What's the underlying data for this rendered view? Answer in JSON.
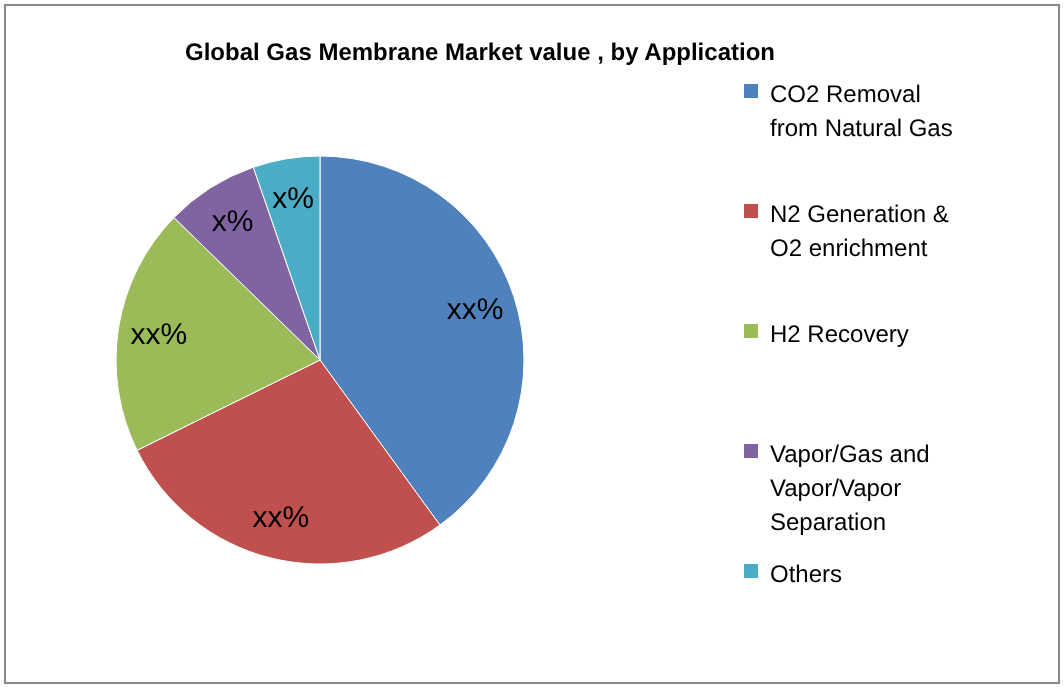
{
  "chart_data": {
    "type": "pie",
    "title": "Global Gas Membrane Market value , by Application",
    "categories": [
      "CO2 Removal from Natural Gas",
      "N2 Generation & O2 enrichment",
      "H2 Recovery",
      "Vapor/Gas and Vapor/Vapor Separation",
      "Others"
    ],
    "values": [
      40,
      27.7,
      19.6,
      7.4,
      5.3
    ],
    "colors": [
      "#4f81bd",
      "#c0504d",
      "#9bbb59",
      "#8064a2",
      "#4bacc6"
    ],
    "value_labels": [
      "xx%",
      "xx%",
      "xx%",
      "x%",
      "x%"
    ],
    "legend": "right"
  }
}
